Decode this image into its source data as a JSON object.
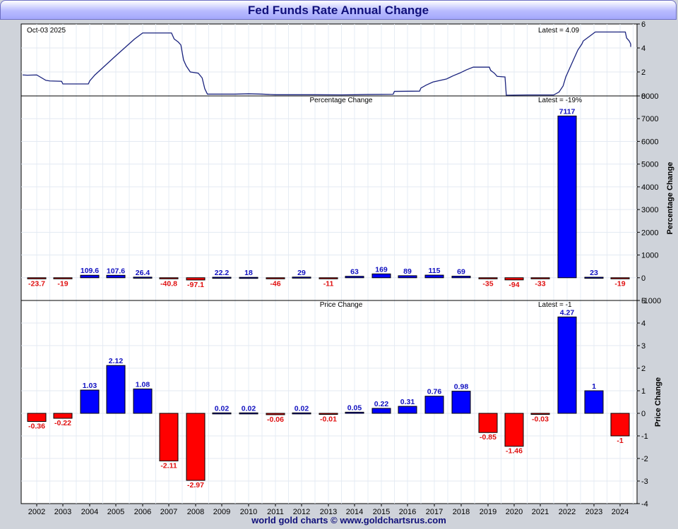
{
  "title": "Fed Funds Rate Annual Change",
  "footer": "world gold charts © www.goldchartsrus.com",
  "colors": {
    "positive": "#0000ff",
    "negative": "#ff0000",
    "line": "#1a237e",
    "title": "#10107a",
    "label_pos": "#1010c0",
    "label_neg": "#e01010"
  },
  "chart_data": [
    {
      "type": "line",
      "date_label": "Oct-03  2025",
      "latest_label": "Latest = 4.09",
      "ylim": [
        0,
        6
      ],
      "yticks": [
        0,
        2,
        4,
        6
      ],
      "x_start": 2001.75,
      "x_end": 2025.76,
      "grid": true,
      "points": [
        [
          2001.75,
          1.75
        ],
        [
          2002.0,
          1.73
        ],
        [
          2002.5,
          1.75
        ],
        [
          2002.85,
          1.3
        ],
        [
          2003.0,
          1.25
        ],
        [
          2003.45,
          1.22
        ],
        [
          2003.5,
          1.0
        ],
        [
          2004.0,
          1.0
        ],
        [
          2004.45,
          1.0
        ],
        [
          2004.5,
          1.25
        ],
        [
          2004.7,
          1.75
        ],
        [
          2004.95,
          2.25
        ],
        [
          2005.2,
          2.75
        ],
        [
          2005.45,
          3.25
        ],
        [
          2005.7,
          3.75
        ],
        [
          2005.95,
          4.25
        ],
        [
          2006.2,
          4.75
        ],
        [
          2006.5,
          5.25
        ],
        [
          2007.0,
          5.25
        ],
        [
          2007.6,
          5.25
        ],
        [
          2007.7,
          4.75
        ],
        [
          2007.85,
          4.5
        ],
        [
          2007.95,
          4.25
        ],
        [
          2008.05,
          3.0
        ],
        [
          2008.15,
          2.5
        ],
        [
          2008.3,
          2.0
        ],
        [
          2008.6,
          1.9
        ],
        [
          2008.75,
          1.5
        ],
        [
          2008.85,
          0.6
        ],
        [
          2008.95,
          0.15
        ],
        [
          2009.5,
          0.15
        ],
        [
          2010.0,
          0.15
        ],
        [
          2010.5,
          0.18
        ],
        [
          2011.0,
          0.15
        ],
        [
          2011.5,
          0.1
        ],
        [
          2012.0,
          0.1
        ],
        [
          2013.0,
          0.1
        ],
        [
          2014.0,
          0.09
        ],
        [
          2014.5,
          0.1
        ],
        [
          2015.0,
          0.12
        ],
        [
          2015.95,
          0.14
        ],
        [
          2016.0,
          0.38
        ],
        [
          2016.95,
          0.4
        ],
        [
          2017.0,
          0.66
        ],
        [
          2017.2,
          0.91
        ],
        [
          2017.45,
          1.16
        ],
        [
          2017.95,
          1.41
        ],
        [
          2018.2,
          1.68
        ],
        [
          2018.45,
          1.91
        ],
        [
          2018.7,
          2.18
        ],
        [
          2018.95,
          2.4
        ],
        [
          2019.55,
          2.4
        ],
        [
          2019.6,
          2.13
        ],
        [
          2019.75,
          1.88
        ],
        [
          2019.85,
          1.63
        ],
        [
          2020.15,
          1.58
        ],
        [
          2020.2,
          0.06
        ],
        [
          2021.0,
          0.08
        ],
        [
          2022.0,
          0.08
        ],
        [
          2022.2,
          0.33
        ],
        [
          2022.35,
          0.83
        ],
        [
          2022.45,
          1.58
        ],
        [
          2022.6,
          2.33
        ],
        [
          2022.75,
          3.08
        ],
        [
          2022.9,
          3.83
        ],
        [
          2023.05,
          4.33
        ],
        [
          2023.1,
          4.58
        ],
        [
          2023.25,
          4.83
        ],
        [
          2023.4,
          5.08
        ],
        [
          2023.55,
          5.33
        ],
        [
          2024.7,
          5.33
        ],
        [
          2024.75,
          4.83
        ],
        [
          2024.85,
          4.58
        ],
        [
          2024.95,
          4.33
        ],
        [
          2025.72,
          4.33
        ],
        [
          2025.76,
          4.09
        ]
      ]
    },
    {
      "type": "bar",
      "subtitle": "Percentage Change",
      "latest_label": "Latest = -19%",
      "ylabel": "Percentage Change",
      "ylim": [
        -1000,
        8000
      ],
      "yticks": [
        -1000,
        0,
        1000,
        2000,
        3000,
        4000,
        5000,
        6000,
        7000,
        8000
      ],
      "categories": [
        "2002",
        "2003",
        "2004",
        "2005",
        "2006",
        "2007",
        "2008",
        "2009",
        "2010",
        "2011",
        "2012",
        "2013",
        "2014",
        "2015",
        "2016",
        "2017",
        "2018",
        "2019",
        "2020",
        "2021",
        "2022",
        "2023",
        "2024"
      ],
      "values": [
        -23.7,
        -19,
        109.6,
        107.6,
        26.4,
        -40.8,
        -97.1,
        22.2,
        18,
        -46,
        29,
        -11,
        63,
        169,
        89,
        115,
        69,
        -35,
        -94,
        -33,
        7117,
        23,
        -19
      ],
      "labels": [
        "-23.7",
        "-19",
        "109.6",
        "107.6",
        "26.4",
        "-40.8",
        "-97.1",
        "22.2",
        "18",
        "-46",
        "29",
        "-11",
        "63",
        "169",
        "89",
        "115",
        "69",
        "-35",
        "-94",
        "-33",
        "7117",
        "23",
        "-19"
      ],
      "grid": true
    },
    {
      "type": "bar",
      "subtitle": "Price Change",
      "latest_label": "Latest = -1",
      "ylabel": "Price Change",
      "ylim": [
        -4,
        5
      ],
      "yticks": [
        -4,
        -3,
        -2,
        -1,
        0,
        1,
        2,
        3,
        4,
        5
      ],
      "categories": [
        "2002",
        "2003",
        "2004",
        "2005",
        "2006",
        "2007",
        "2008",
        "2009",
        "2010",
        "2011",
        "2012",
        "2013",
        "2014",
        "2015",
        "2016",
        "2017",
        "2018",
        "2019",
        "2020",
        "2021",
        "2022",
        "2023",
        "2024"
      ],
      "values": [
        -0.36,
        -0.22,
        1.03,
        2.12,
        1.08,
        -2.11,
        -2.97,
        0.02,
        0.02,
        -0.06,
        0.02,
        -0.01,
        0.05,
        0.22,
        0.31,
        0.76,
        0.98,
        -0.85,
        -1.46,
        -0.03,
        4.27,
        1,
        -1
      ],
      "labels": [
        "-0.36",
        "-0.22",
        "1.03",
        "2.12",
        "1.08",
        "-2.11",
        "-2.97",
        "0.02",
        "0.02",
        "-0.06",
        "0.02",
        "-0.01",
        "0.05",
        "0.22",
        "0.31",
        "0.76",
        "0.98",
        "-0.85",
        "-1.46",
        "-0.03",
        "4.27",
        "1",
        "-1"
      ],
      "grid": true
    }
  ]
}
